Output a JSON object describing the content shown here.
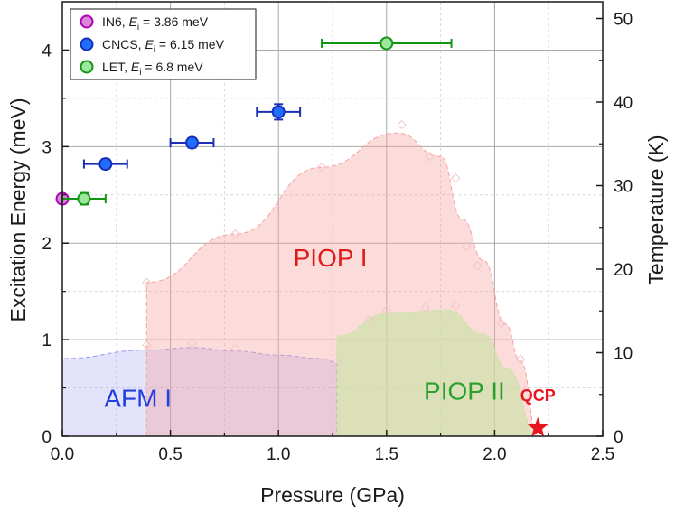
{
  "chart_data": {
    "type": "scatter",
    "xlabel": "Pressure (GPa)",
    "ylabel": "Excitation Energy (meV)",
    "y2label": "Temperature (K)",
    "xlim": [
      0,
      2.5
    ],
    "ylim": [
      0,
      4.5
    ],
    "y2lim": [
      0,
      52
    ],
    "x_ticks": [
      "0.0",
      "0.5",
      "1.0",
      "1.5",
      "2.0",
      "2.5"
    ],
    "y_ticks": [
      "0",
      "1",
      "2",
      "3",
      "4"
    ],
    "y2_ticks": [
      "0",
      "10",
      "20",
      "30",
      "40",
      "50"
    ],
    "grid": true,
    "legend": {
      "position": "top-left",
      "entries": [
        {
          "prefix": "IN6, ",
          "italic": "E",
          "sub": "i",
          "suffix": " = 3.86 meV",
          "color": "#b000b0",
          "fill": "#d988d9"
        },
        {
          "prefix": "CNCS, ",
          "italic": "E",
          "sub": "i",
          "suffix": " = 6.15 meV",
          "color": "#1a2fb8",
          "fill": "#1f6fff"
        },
        {
          "prefix": "LET, ",
          "italic": "E",
          "sub": "i",
          "suffix": " = 6.8 meV",
          "color": "#129612",
          "fill": "#9ee89e"
        }
      ]
    },
    "series": [
      {
        "name": "IN6, Ei = 3.86 meV",
        "color": "#b000b0",
        "fill": "#d988d9",
        "points": [
          {
            "x": 0.0,
            "y": 2.46,
            "xerr": 0,
            "yerr": 0
          }
        ]
      },
      {
        "name": "CNCS, Ei = 6.15 meV",
        "color": "#1a2fb8",
        "fill": "#1f6fff",
        "points": [
          {
            "x": 0.2,
            "y": 2.82,
            "xerr": 0.1,
            "yerr": 0.05
          },
          {
            "x": 0.6,
            "y": 3.04,
            "xerr": 0.1,
            "yerr": 0.05
          },
          {
            "x": 1.0,
            "y": 3.36,
            "xerr": 0.1,
            "yerr": 0.08
          }
        ]
      },
      {
        "name": "LET, Ei = 6.8 meV",
        "color": "#129612",
        "fill": "#9ee89e",
        "points": [
          {
            "x": 0.1,
            "y": 2.46,
            "xerr": 0.1,
            "yerr": 0.06
          },
          {
            "x": 1.5,
            "y": 4.07,
            "xerr": 0.3,
            "yerr": 0.03
          }
        ]
      }
    ],
    "regions": [
      {
        "label": "AFM I",
        "color": "#1f3fe0",
        "fill": "#9b9bf5",
        "opacity": 0.28,
        "label_at": {
          "x": 0.35,
          "temp": 3.5
        },
        "boundary": [
          [
            0,
            9.3
          ],
          [
            0.39,
            10.3
          ],
          [
            0.6,
            10.6
          ],
          [
            0.8,
            10.2
          ],
          [
            1.0,
            9.7
          ],
          [
            1.2,
            9.3
          ],
          [
            1.27,
            8.8
          ]
        ]
      },
      {
        "label": "PIOP I",
        "color": "#e01a1a",
        "fill": "#f7a1a1",
        "opacity": 0.38,
        "label_at": {
          "x": 1.24,
          "temp": 20.3
        },
        "boundary": [
          [
            0.39,
            18.4
          ],
          [
            0.8,
            24.2
          ],
          [
            1.2,
            32.2
          ],
          [
            1.55,
            36.3
          ],
          [
            1.75,
            33.5
          ],
          [
            1.85,
            26
          ],
          [
            1.95,
            21
          ],
          [
            2.05,
            13.4
          ],
          [
            2.12,
            9
          ],
          [
            2.2,
            0
          ]
        ]
      },
      {
        "label": "PIOP II",
        "color": "#2ca02c",
        "fill": "#c9e4a8",
        "opacity": 0.65,
        "label_at": {
          "x": 1.86,
          "temp": 4.4
        },
        "boundary": [
          [
            1.27,
            12
          ],
          [
            1.5,
            14.7
          ],
          [
            1.78,
            15.1
          ],
          [
            1.95,
            12.2
          ],
          [
            2.06,
            8.1
          ],
          [
            2.2,
            0
          ]
        ]
      }
    ],
    "guide_points": [
      {
        "x": 0.39,
        "temp": 18.4
      },
      {
        "x": 0.8,
        "temp": 24.2
      },
      {
        "x": 1.2,
        "temp": 32.2
      },
      {
        "x": 1.57,
        "temp": 37.3
      },
      {
        "x": 1.7,
        "temp": 33.5
      },
      {
        "x": 1.82,
        "temp": 30.9
      },
      {
        "x": 1.87,
        "temp": 22.7
      },
      {
        "x": 1.92,
        "temp": 20.4
      },
      {
        "x": 2.03,
        "temp": 13.5
      },
      {
        "x": 2.12,
        "temp": 9.2
      },
      {
        "x": 0.39,
        "temp": 10.9
      },
      {
        "x": 0.6,
        "temp": 11.1
      },
      {
        "x": 0.8,
        "temp": 10.5
      },
      {
        "x": 1.27,
        "temp": 8.8
      },
      {
        "x": 1.42,
        "temp": 13.9
      },
      {
        "x": 1.5,
        "temp": 15.1
      },
      {
        "x": 1.68,
        "temp": 15.4
      },
      {
        "x": 1.82,
        "temp": 15.6
      }
    ],
    "qcp": {
      "label": "QCP",
      "x": 2.2,
      "temp": 1.0,
      "color": "#e8141e"
    }
  }
}
